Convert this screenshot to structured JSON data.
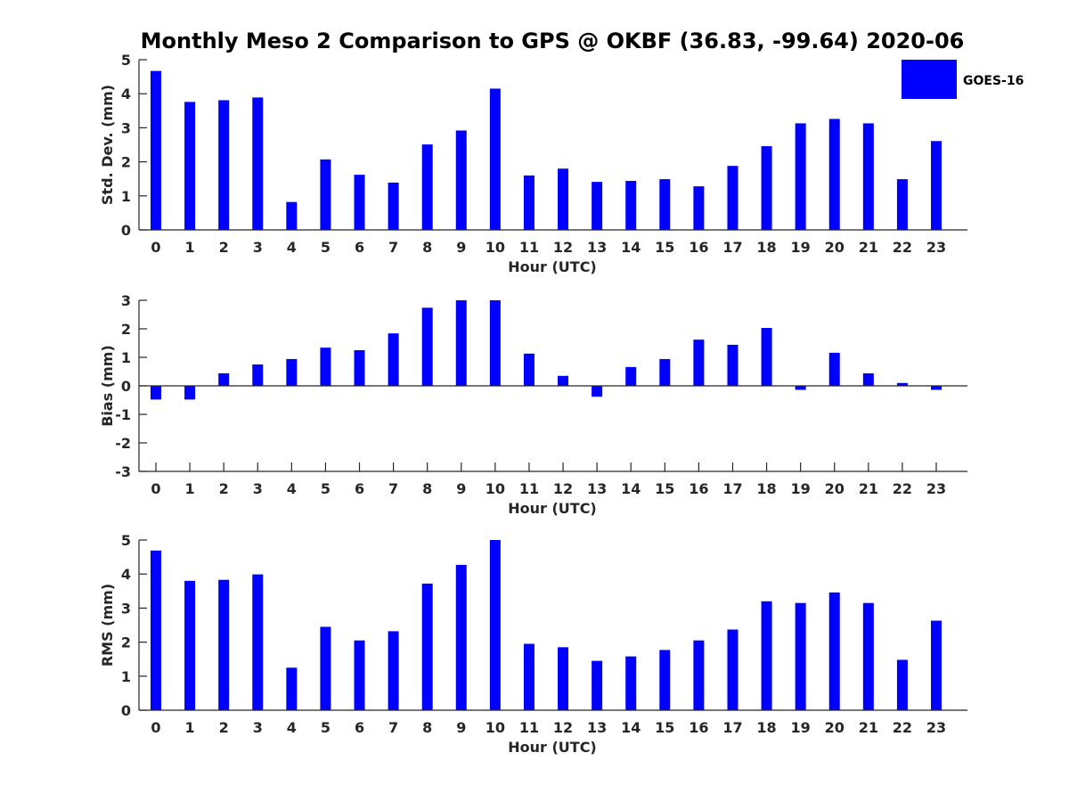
{
  "chart_data": {
    "type": "bar",
    "title": "Monthly Meso 2 Comparison to GPS @ OKBF (36.83, -99.64) 2020-06",
    "legend": {
      "label": "GOES-16",
      "color": "#0000ff",
      "placement": "top-right"
    },
    "categories": [
      "0",
      "1",
      "2",
      "3",
      "4",
      "5",
      "6",
      "7",
      "8",
      "9",
      "10",
      "11",
      "12",
      "13",
      "14",
      "15",
      "16",
      "17",
      "18",
      "19",
      "20",
      "21",
      "22",
      "23"
    ],
    "panels": [
      {
        "name": "std-dev",
        "xlabel": "Hour (UTC)",
        "ylabel": "Std. Dev. (mm)",
        "ylim": [
          0,
          5
        ],
        "yticks": [
          "0",
          "1",
          "2",
          "3",
          "4",
          "5"
        ],
        "grid": false,
        "series": [
          {
            "name": "GOES-16",
            "values": [
              4.67,
              3.76,
              3.81,
              3.89,
              0.82,
              2.07,
              1.62,
              1.39,
              2.51,
              2.92,
              4.15,
              1.6,
              1.8,
              1.41,
              1.44,
              1.49,
              1.28,
              1.88,
              2.46,
              3.13,
              3.26,
              3.13,
              1.49,
              2.61
            ]
          }
        ]
      },
      {
        "name": "bias",
        "xlabel": "Hour (UTC)",
        "ylabel": "Bias (mm)",
        "ylim": [
          -3,
          3
        ],
        "yticks": [
          "-3",
          "-2",
          "-1",
          "0",
          "1",
          "2",
          "3"
        ],
        "grid": false,
        "zero_line": true,
        "series": [
          {
            "name": "GOES-16",
            "values": [
              -0.48,
              -0.48,
              0.44,
              0.75,
              0.94,
              1.34,
              1.25,
              1.84,
              2.74,
              3.0,
              3.0,
              1.13,
              0.35,
              -0.38,
              0.66,
              0.94,
              1.62,
              1.44,
              2.03,
              -0.14,
              1.16,
              0.44,
              0.1,
              -0.14
            ]
          }
        ]
      },
      {
        "name": "rms",
        "xlabel": "Hour (UTC)",
        "ylabel": "RMS (mm)",
        "ylim": [
          0,
          5
        ],
        "yticks": [
          "0",
          "1",
          "2",
          "3",
          "4",
          "5"
        ],
        "grid": false,
        "series": [
          {
            "name": "GOES-16",
            "values": [
              4.69,
              3.8,
              3.83,
              3.99,
              1.25,
              2.45,
              2.05,
              2.32,
              3.72,
              4.27,
              5.0,
              1.95,
              1.85,
              1.45,
              1.58,
              1.77,
              2.05,
              2.37,
              3.2,
              3.15,
              3.46,
              3.15,
              1.48,
              2.63
            ]
          }
        ]
      }
    ]
  }
}
